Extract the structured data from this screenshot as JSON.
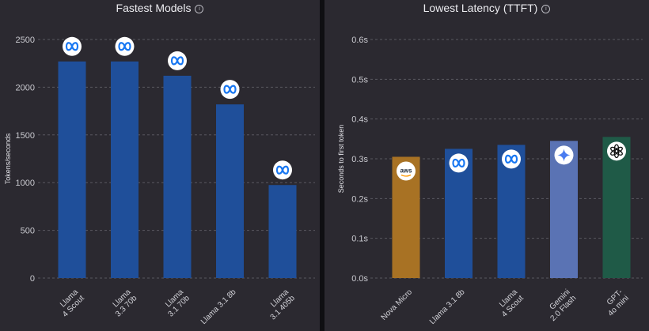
{
  "charts": [
    {
      "title": "Fastest Models",
      "info_icon": "info-icon",
      "chart_data": {
        "type": "bar",
        "categories": [
          [
            "Llama",
            "4 Scout"
          ],
          [
            "Llama",
            "3.3 70b"
          ],
          [
            "Llama",
            "3.1 70b"
          ],
          [
            "Llama 3.1 8b"
          ],
          [
            "Llama",
            "3.1 405b"
          ]
        ],
        "values": [
          2270,
          2270,
          2120,
          1820,
          975
        ],
        "ylabel": "Tokens/seconds",
        "ylim": [
          0,
          2500
        ],
        "yticks": [
          "0",
          "500",
          "1000",
          "1500",
          "2000",
          "2500"
        ],
        "grid": true,
        "bar_colors": [
          "#1f4f9a",
          "#1f4f9a",
          "#1f4f9a",
          "#1f4f9a",
          "#1f4f9a"
        ],
        "icons": [
          "meta-icon",
          "meta-icon",
          "meta-icon",
          "meta-icon",
          "meta-icon"
        ]
      }
    },
    {
      "title": "Lowest Latency (TTFT)",
      "info_icon": "info-icon",
      "chart_data": {
        "type": "bar",
        "categories": [
          [
            "Nova Micro"
          ],
          [
            "Llama 3.1 8b"
          ],
          [
            "Llama",
            "4 Scout"
          ],
          [
            "Gemini",
            "2.0 Flash"
          ],
          [
            "GPT-",
            "4o mini"
          ]
        ],
        "values": [
          0.305,
          0.325,
          0.335,
          0.345,
          0.355
        ],
        "ylabel": "Seconds to first token",
        "ylim": [
          0,
          0.6
        ],
        "yticks": [
          "0.0s",
          "0.1s",
          "0.2s",
          "0.3s",
          "0.4s",
          "0.5s",
          "0.6s"
        ],
        "grid": true,
        "bar_colors": [
          "#a87224",
          "#1f4f9a",
          "#1f4f9a",
          "#5a73b4",
          "#1f5a47"
        ],
        "icons": [
          "aws-icon",
          "meta-icon",
          "meta-icon",
          "gemini-icon",
          "openai-icon"
        ]
      }
    }
  ]
}
